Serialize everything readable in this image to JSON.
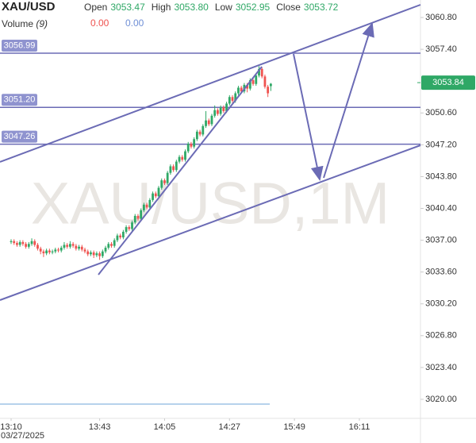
{
  "chart_data": {
    "type": "candlestick",
    "symbol": "XAU/USD",
    "watermark": "XAU/USD,1M",
    "legend": [
      {
        "label": "Open",
        "value": "3053.47"
      },
      {
        "label": "High",
        "value": "3053.80"
      },
      {
        "label": "Low",
        "value": "3052.95"
      },
      {
        "label": "Close",
        "value": "3053.72"
      }
    ],
    "volume_label": "Volume",
    "volume_period": "(9)",
    "volume_values": [
      "0.00",
      "0.00"
    ],
    "up_color": "#2fa866",
    "down_color": "#ef5350",
    "x": [
      0,
      1,
      2,
      3,
      4,
      5,
      6,
      7,
      8,
      9,
      10,
      11,
      12,
      13,
      14,
      15,
      16,
      17,
      18,
      19,
      20,
      21,
      22,
      23,
      24,
      25,
      26,
      27,
      28,
      29,
      30,
      31,
      32,
      33,
      34,
      35,
      36,
      37,
      38,
      39,
      40,
      41,
      42,
      43,
      44,
      45,
      46,
      47,
      48,
      49,
      50,
      51,
      52,
      53,
      54,
      55,
      56,
      57,
      58,
      59,
      60,
      61,
      62,
      63,
      64,
      65,
      66,
      67,
      68,
      69,
      70,
      71,
      72,
      73,
      74,
      75,
      76,
      77,
      78,
      79,
      80,
      81,
      82,
      83,
      84,
      85,
      86,
      87,
      88
    ],
    "open": [
      3036.8,
      3036.9,
      3036.7,
      3036.5,
      3036.8,
      3036.6,
      3036.3,
      3036.6,
      3036.9,
      3036.5,
      3036.1,
      3035.8,
      3035.6,
      3035.9,
      3035.7,
      3035.8,
      3036.0,
      3035.9,
      3036.2,
      3036.5,
      3036.3,
      3036.6,
      3036.4,
      3036.1,
      3036.3,
      3036.0,
      3035.8,
      3035.5,
      3035.7,
      3035.4,
      3035.6,
      3035.3,
      3035.8,
      3036.2,
      3036.6,
      3036.4,
      3037.0,
      3037.5,
      3037.3,
      3037.9,
      3038.4,
      3038.2,
      3038.9,
      3039.6,
      3039.3,
      3040.2,
      3040.8,
      3040.5,
      3041.3,
      3042.0,
      3041.7,
      3042.6,
      3043.4,
      3043.1,
      3044.2,
      3044.9,
      3044.5,
      3045.4,
      3045.9,
      3045.6,
      3046.5,
      3047.3,
      3047.0,
      3047.8,
      3048.6,
      3048.3,
      3049.2,
      3049.8,
      3049.4,
      3050.3,
      3050.9,
      3050.5,
      3051.2,
      3050.8,
      3051.6,
      3052.3,
      3051.9,
      3052.7,
      3053.3,
      3052.9,
      3053.6,
      3053.2,
      3054.1,
      3053.7,
      3054.6,
      3055.3,
      3054.5,
      3053.4,
      3053.47
    ],
    "high": [
      3037.1,
      3037.1,
      3036.9,
      3037.0,
      3037.0,
      3036.8,
      3036.8,
      3037.2,
      3037.1,
      3036.7,
      3036.3,
      3036.0,
      3036.1,
      3036.1,
      3036.0,
      3036.2,
      3036.2,
      3036.4,
      3036.8,
      3036.7,
      3036.9,
      3036.8,
      3036.6,
      3036.5,
      3036.5,
      3036.2,
      3036.0,
      3035.9,
      3035.9,
      3035.8,
      3035.8,
      3036.0,
      3036.4,
      3036.8,
      3036.8,
      3037.2,
      3037.7,
      3037.7,
      3038.1,
      3038.6,
      3038.6,
      3039.1,
      3039.8,
      3039.8,
      3040.4,
      3041.0,
      3041.0,
      3041.5,
      3042.2,
      3042.2,
      3042.8,
      3043.6,
      3043.6,
      3044.4,
      3045.1,
      3045.1,
      3045.6,
      3046.1,
      3046.1,
      3046.7,
      3047.5,
      3047.5,
      3048.0,
      3048.8,
      3048.8,
      3049.4,
      3050.8,
      3050.0,
      3050.5,
      3051.4,
      3051.1,
      3051.4,
      3051.4,
      3051.8,
      3052.5,
      3052.5,
      3052.9,
      3053.5,
      3053.5,
      3053.8,
      3053.8,
      3054.3,
      3054.3,
      3054.8,
      3055.6,
      3055.5,
      3054.7,
      3053.6,
      3053.8
    ],
    "low": [
      3036.6,
      3036.5,
      3036.3,
      3036.3,
      3036.4,
      3036.1,
      3036.1,
      3036.4,
      3036.3,
      3035.9,
      3035.5,
      3035.2,
      3035.4,
      3035.5,
      3035.5,
      3035.6,
      3035.7,
      3035.7,
      3036.0,
      3036.1,
      3036.1,
      3036.2,
      3035.9,
      3035.9,
      3035.8,
      3035.6,
      3035.3,
      3035.3,
      3035.1,
      3035.2,
      3034.9,
      3035.1,
      3035.6,
      3036.0,
      3036.2,
      3036.2,
      3036.8,
      3037.1,
      3037.1,
      3037.7,
      3038.0,
      3038.0,
      3038.7,
      3039.1,
      3039.1,
      3040.0,
      3040.3,
      3040.3,
      3041.1,
      3041.5,
      3041.5,
      3042.4,
      3042.9,
      3042.9,
      3044.0,
      3044.3,
      3044.3,
      3045.2,
      3045.4,
      3045.4,
      3046.3,
      3046.8,
      3046.8,
      3047.6,
      3048.1,
      3048.1,
      3049.0,
      3049.2,
      3049.2,
      3050.1,
      3050.3,
      3050.3,
      3050.6,
      3050.6,
      3051.4,
      3051.7,
      3051.7,
      3052.5,
      3052.7,
      3052.7,
      3052.8,
      3053.0,
      3053.5,
      3053.5,
      3054.4,
      3054.3,
      3053.2,
      3052.3,
      3052.95
    ],
    "close": [
      3036.9,
      3036.7,
      3036.5,
      3036.8,
      3036.6,
      3036.3,
      3036.6,
      3036.9,
      3036.5,
      3036.1,
      3035.8,
      3035.6,
      3035.9,
      3035.7,
      3035.8,
      3036.0,
      3035.9,
      3036.2,
      3036.5,
      3036.3,
      3036.6,
      3036.4,
      3036.1,
      3036.3,
      3036.0,
      3035.8,
      3035.5,
      3035.7,
      3035.4,
      3035.6,
      3035.3,
      3035.8,
      3036.2,
      3036.6,
      3036.4,
      3037.0,
      3037.5,
      3037.3,
      3037.9,
      3038.4,
      3038.2,
      3038.9,
      3039.6,
      3039.3,
      3040.2,
      3040.8,
      3040.5,
      3041.3,
      3042.0,
      3041.7,
      3042.6,
      3043.4,
      3043.1,
      3044.2,
      3044.9,
      3044.5,
      3045.4,
      3045.9,
      3045.6,
      3046.5,
      3047.3,
      3047.0,
      3047.8,
      3048.6,
      3048.3,
      3049.2,
      3049.8,
      3049.4,
      3050.3,
      3050.9,
      3050.5,
      3051.2,
      3050.8,
      3051.6,
      3052.3,
      3051.9,
      3052.7,
      3053.3,
      3052.9,
      3053.6,
      3053.2,
      3054.1,
      3053.7,
      3054.6,
      3055.3,
      3054.5,
      3053.4,
      3052.7,
      3053.72
    ],
    "levels": [
      {
        "value": 3056.99,
        "label": "3056.99"
      },
      {
        "value": 3051.2,
        "label": "3051.20"
      },
      {
        "value": 3047.26,
        "label": "3047.26"
      }
    ],
    "level_color": "#6b6bb5",
    "last_price": 3053.84,
    "xlim": [
      -3.76,
      138.7
    ],
    "ylim": [
      3017.96,
      3062.67
    ],
    "xticks": [
      {
        "value": 0,
        "label": "13:10"
      },
      {
        "value": 30,
        "label": "13:43"
      },
      {
        "value": 52,
        "label": "14:05"
      },
      {
        "value": 74,
        "label": "14:27"
      },
      {
        "value": 96,
        "label": "15:49"
      },
      {
        "value": 118,
        "label": "16:11"
      }
    ],
    "x_date": "03/27/2025",
    "yticks": [
      {
        "value": 3060.8,
        "label": "3060.80"
      },
      {
        "value": 3057.4,
        "label": "3057.40"
      },
      {
        "value": 3050.6,
        "label": "3050.60"
      },
      {
        "value": 3047.2,
        "label": "3047.20"
      },
      {
        "value": 3043.8,
        "label": "3043.80"
      },
      {
        "value": 3040.4,
        "label": "3040.40"
      },
      {
        "value": 3037,
        "label": "3037.00"
      },
      {
        "value": 3033.6,
        "label": "3033.60"
      },
      {
        "value": 3030.2,
        "label": "3030.20"
      },
      {
        "value": 3026.8,
        "label": "3026.80"
      },
      {
        "value": 3023.4,
        "label": "3023.40"
      },
      {
        "value": 3020,
        "label": "3020.00"
      }
    ]
  }
}
